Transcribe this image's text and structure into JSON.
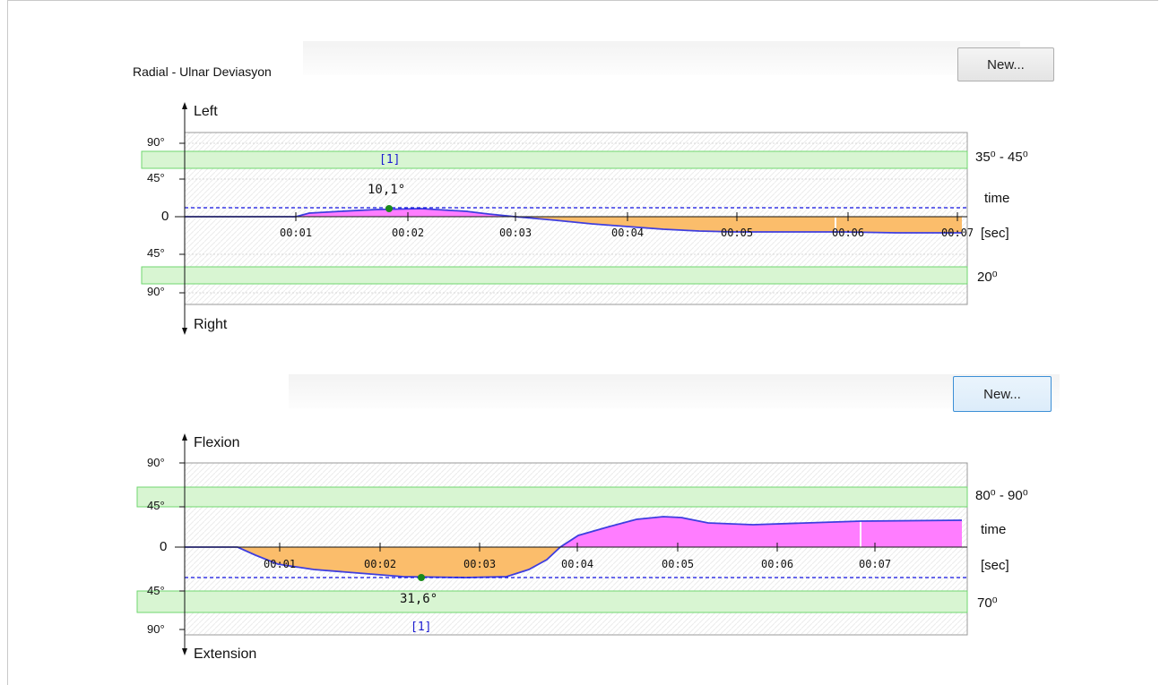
{
  "colors": {
    "positive_fill": "#ff7dff",
    "negative_fill": "#fbbd6b",
    "curve": "#3e3ee0",
    "threshold": "#1010e0",
    "band_fill": "#d8f5d2",
    "band_stroke": "#6fd66f",
    "peak_marker": "#1a8a1a",
    "marker_label": "#1a1ad0"
  },
  "charts": [
    {
      "id": "radial-ulnar",
      "title": "Radial - Ulnar Deviasyon",
      "new_button": "New...",
      "top_axis_label": "Left",
      "bottom_axis_label": "Right",
      "y_ticks": [
        "90°",
        "45°",
        "0",
        "45°",
        "90°"
      ],
      "x_ticks": [
        "00:01",
        "00:02",
        "00:03",
        "00:04",
        "00:05",
        "00:06",
        "00:07"
      ],
      "time_label": "time",
      "unit_label": "[sec]",
      "top_range_label": "35⁰ - 45⁰",
      "bottom_range_label": "20⁰",
      "peak_label": "10,1°",
      "marker_label": "[1]"
    },
    {
      "id": "flexion-extension",
      "title": "",
      "new_button": "New...",
      "top_axis_label": "Flexion",
      "bottom_axis_label": "Extension",
      "y_ticks": [
        "90°",
        "45°",
        "0",
        "45°",
        "90°"
      ],
      "x_ticks": [
        "00:01",
        "00:02",
        "00:03",
        "00:04",
        "00:05",
        "00:06",
        "00:07"
      ],
      "time_label": "time",
      "unit_label": "[sec]",
      "top_range_label": "80⁰ - 90⁰",
      "bottom_range_label": "70⁰",
      "peak_label": "31,6°",
      "marker_label": "[1]"
    }
  ],
  "chart_data": [
    {
      "type": "area",
      "title": "Radial - Ulnar Deviasyon",
      "xlabel": "time [sec]",
      "ylabel": "",
      "series": [
        {
          "x": [
            "00:00",
            "00:01",
            "00:01.5",
            "00:02",
            "00:02.5",
            "00:03",
            "00:03.5",
            "00:04",
            "00:04.5",
            "00:05",
            "00:05.5",
            "00:06",
            "00:06.5",
            "00:07"
          ],
          "values": [
            0,
            1,
            6,
            10,
            8,
            0,
            -5,
            -10,
            -14,
            -16,
            -16,
            -16,
            -16,
            -16
          ]
        }
      ],
      "peak": {
        "x": "00:01.8",
        "value": 10.1
      },
      "target_bands": {
        "left": [
          35,
          45
        ],
        "right": [
          20
        ]
      }
    },
    {
      "type": "area",
      "title": "",
      "xlabel": "time [sec]",
      "ylabel": "",
      "series": [
        {
          "x": [
            "00:00",
            "00:00.5",
            "00:01",
            "00:01.5",
            "00:02",
            "00:02.5",
            "00:03",
            "00:03.5",
            "00:04",
            "00:04.5",
            "00:05",
            "00:05.5",
            "00:06",
            "00:06.5",
            "00:07",
            "00:07.5"
          ],
          "values": [
            0,
            -8,
            -20,
            -25,
            -29,
            -31,
            -31,
            -26,
            8,
            25,
            33,
            27,
            26,
            27,
            28,
            28
          ]
        }
      ],
      "peak": {
        "x": "00:02.4",
        "value": -31.6
      },
      "target_bands": {
        "flexion": [
          80,
          90
        ],
        "extension": [
          70
        ]
      }
    }
  ]
}
